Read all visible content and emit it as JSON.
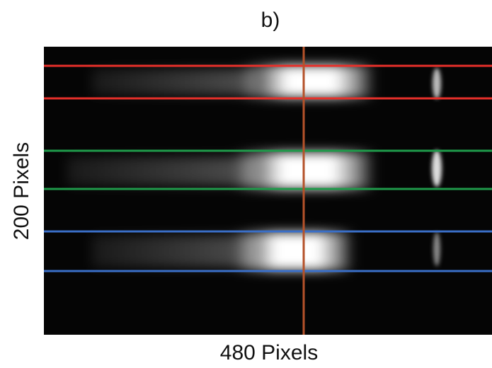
{
  "panel_label": "b)",
  "y_axis_label": "200 Pixels",
  "x_axis_label": "480 Pixels"
}
